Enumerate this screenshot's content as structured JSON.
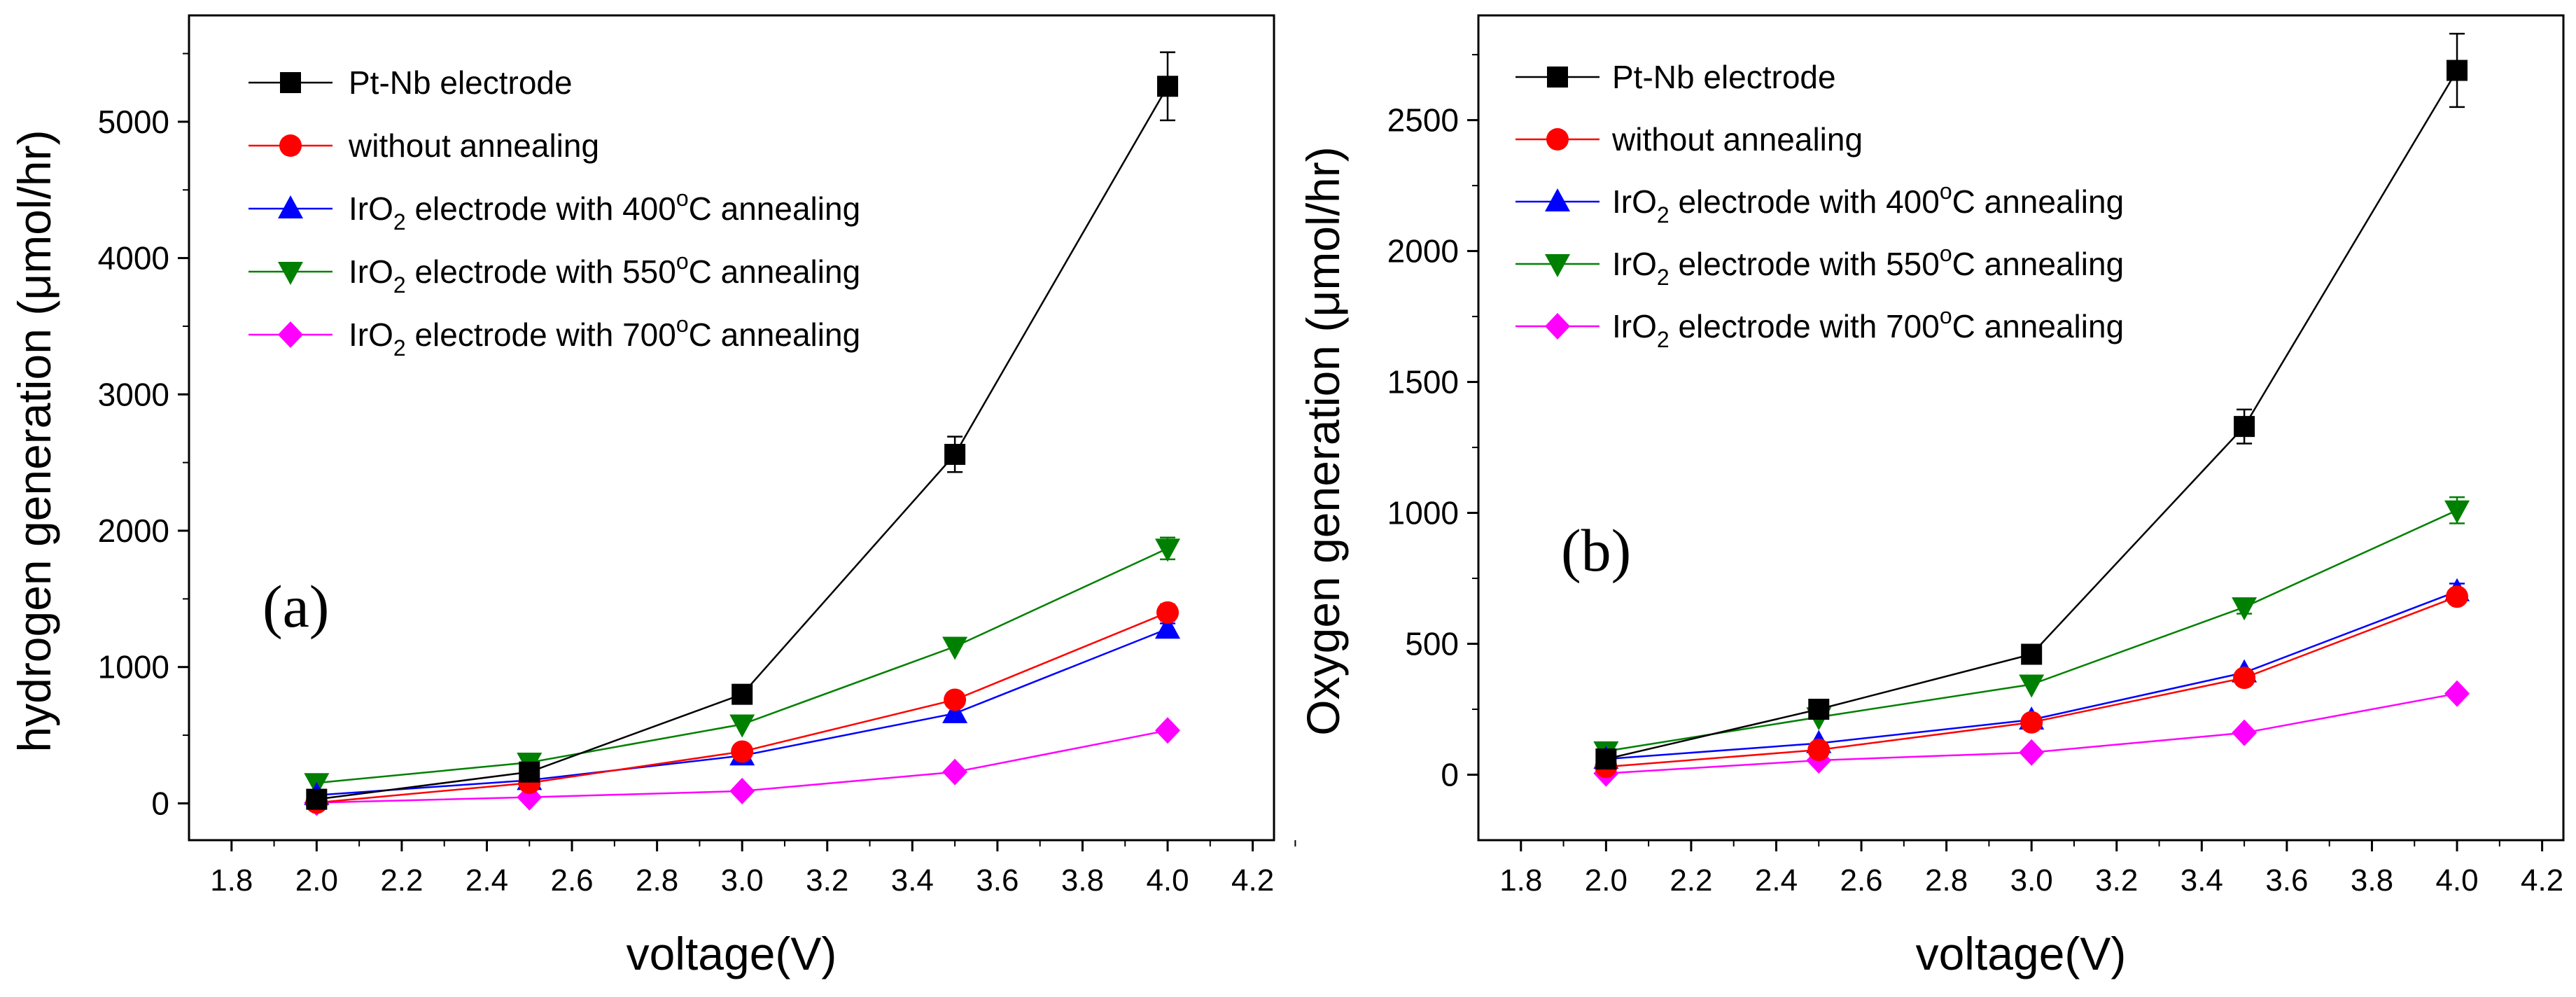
{
  "chart_data": [
    {
      "type": "line",
      "panel_label": "(a)",
      "xlabel": "voltage(V)",
      "ylabel": "hydrogen generation (μmol/hr)",
      "xlim": [
        1.7,
        4.25
      ],
      "ylim": [
        -270,
        5780
      ],
      "xticks": [
        "1.8",
        "2.0",
        "2.2",
        "2.4",
        "2.6",
        "2.8",
        "3.0",
        "3.2",
        "3.4",
        "3.6",
        "3.8",
        "4.0",
        "4.2"
      ],
      "yticks": [
        "0",
        "1000",
        "2000",
        "3000",
        "4000",
        "5000"
      ],
      "legend_position": "top-left",
      "x": [
        2.0,
        2.5,
        3.0,
        3.5,
        4.0
      ],
      "series": [
        {
          "name": "Pt-Nb electrode",
          "legend": {
            "pre": "Pt-Nb electrode"
          },
          "color": "#000000",
          "marker": "square",
          "values": [
            30,
            230,
            800,
            2560,
            5260
          ],
          "errors": [
            0,
            0,
            0,
            130,
            250
          ]
        },
        {
          "name": "without annealing",
          "legend": {
            "pre": "without annealing"
          },
          "color": "#ff0000",
          "marker": "circle",
          "values": [
            5,
            150,
            380,
            760,
            1400
          ],
          "errors": [
            0,
            0,
            0,
            0,
            60
          ]
        },
        {
          "name": "IrO2 electrode with 400°C annealing",
          "legend": {
            "pre": "IrO",
            "sub": "2",
            "mid": " electrode with 400",
            "sup": "o",
            "post": "C annealing"
          },
          "color": "#0000ff",
          "marker": "triangle-up",
          "values": [
            60,
            170,
            350,
            660,
            1280
          ],
          "errors": [
            0,
            0,
            0,
            0,
            40
          ]
        },
        {
          "name": "IrO2 electrode with 550°C annealing",
          "legend": {
            "pre": "IrO",
            "sub": "2",
            "mid": " electrode with 550",
            "sup": "o",
            "post": "C annealing"
          },
          "color": "#008000",
          "marker": "triangle-down",
          "values": [
            150,
            300,
            580,
            1150,
            1870
          ],
          "errors": [
            0,
            0,
            0,
            0,
            80
          ]
        },
        {
          "name": "IrO2 electrode with 700°C annealing",
          "legend": {
            "pre": "IrO",
            "sub": "2",
            "mid": " electrode with 700",
            "sup": "o",
            "post": "C annealing"
          },
          "color": "#ff00ff",
          "marker": "diamond",
          "values": [
            5,
            45,
            90,
            230,
            535
          ],
          "errors": [
            0,
            0,
            0,
            0,
            0
          ]
        }
      ]
    },
    {
      "type": "line",
      "panel_label": "(b)",
      "xlabel": "voltage(V)",
      "ylabel": "Oxygen generation (μmol/hr)",
      "xlim": [
        1.7,
        4.25
      ],
      "ylim": [
        -250,
        2900
      ],
      "xticks": [
        "1.8",
        "2.0",
        "2.2",
        "2.4",
        "2.6",
        "2.8",
        "3.0",
        "3.2",
        "3.4",
        "3.6",
        "3.8",
        "4.0",
        "4.2"
      ],
      "yticks": [
        "0",
        "500",
        "1000",
        "1500",
        "2000",
        "2500"
      ],
      "legend_position": "top-left",
      "x": [
        2.0,
        2.5,
        3.0,
        3.5,
        4.0
      ],
      "series": [
        {
          "name": "Pt-Nb electrode",
          "legend": {
            "pre": "Pt-Nb electrode"
          },
          "color": "#000000",
          "marker": "square",
          "values": [
            60,
            250,
            460,
            1330,
            2690
          ],
          "errors": [
            0,
            0,
            0,
            65,
            140
          ]
        },
        {
          "name": "without annealing",
          "legend": {
            "pre": "without annealing"
          },
          "color": "#ff0000",
          "marker": "circle",
          "values": [
            30,
            95,
            200,
            370,
            680
          ],
          "errors": [
            0,
            0,
            0,
            0,
            0
          ]
        },
        {
          "name": "IrO2 electrode with 400°C annealing",
          "legend": {
            "pre": "IrO",
            "sub": "2",
            "mid": " electrode with 400",
            "sup": "o",
            "post": "C annealing"
          },
          "color": "#0000ff",
          "marker": "triangle-up",
          "values": [
            60,
            120,
            210,
            390,
            700
          ],
          "errors": [
            0,
            0,
            0,
            0,
            30
          ]
        },
        {
          "name": "IrO2 electrode with 550°C annealing",
          "legend": {
            "pre": "IrO",
            "sub": "2",
            "mid": " electrode with 550",
            "sup": "o",
            "post": "C annealing"
          },
          "color": "#008000",
          "marker": "triangle-down",
          "values": [
            90,
            220,
            345,
            640,
            1010
          ],
          "errors": [
            0,
            0,
            0,
            25,
            50
          ]
        },
        {
          "name": "IrO2 electrode with 700°C annealing",
          "legend": {
            "pre": "IrO",
            "sub": "2",
            "mid": " electrode with 700",
            "sup": "o",
            "post": "C annealing"
          },
          "color": "#ff00ff",
          "marker": "diamond",
          "values": [
            5,
            55,
            85,
            160,
            310
          ],
          "errors": [
            0,
            0,
            0,
            0,
            0
          ]
        }
      ]
    }
  ]
}
